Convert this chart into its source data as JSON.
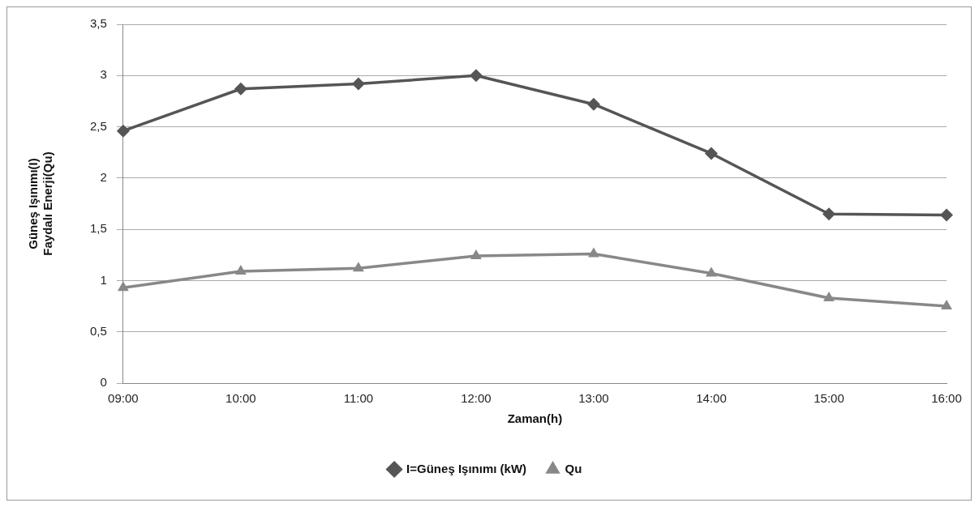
{
  "chart_data": {
    "type": "line",
    "xlabel": "Zaman(h)",
    "ylabel": "Güneş Işınımı(I)\nFaydalı Enerji(Qu)",
    "categories": [
      "09:00",
      "10:00",
      "11:00",
      "12:00",
      "13:00",
      "14:00",
      "15:00",
      "16:00"
    ],
    "series": [
      {
        "name": "I=Güneş Işınımı (kW)",
        "color": "#555555",
        "marker": "diamond",
        "values": [
          2.46,
          2.87,
          2.92,
          3.0,
          2.72,
          2.24,
          1.65,
          1.64
        ]
      },
      {
        "name": "Qu",
        "color": "#888888",
        "marker": "triangle",
        "values": [
          0.93,
          1.09,
          1.12,
          1.24,
          1.26,
          1.07,
          0.83,
          0.75
        ]
      }
    ],
    "ylim": [
      0,
      3.5
    ],
    "yticks": [
      0,
      {
        "value": 0.5,
        "label": "0,5"
      },
      1,
      {
        "value": 1.5,
        "label": "1,5"
      },
      2,
      {
        "value": 2.5,
        "label": "2,5"
      },
      3,
      {
        "value": 3.5,
        "label": "3,5"
      }
    ],
    "grid": "y",
    "legend": "bottom"
  }
}
